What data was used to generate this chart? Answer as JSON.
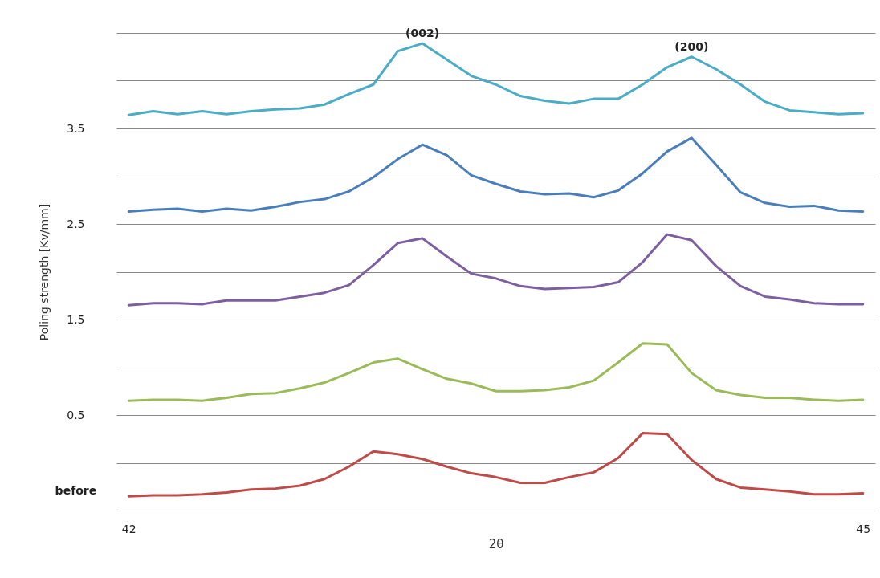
{
  "chart_data": {
    "type": "line",
    "xlabel": "2θ",
    "ylabel": "Poling strength [Kv/mm]",
    "x": [
      42.0,
      42.1,
      42.2,
      42.3,
      42.4,
      42.5,
      42.6,
      42.7,
      42.8,
      42.9,
      43.0,
      43.1,
      43.2,
      43.3,
      43.4,
      43.5,
      43.6,
      43.7,
      43.8,
      43.9,
      44.0,
      44.1,
      44.2,
      44.3,
      44.4,
      44.5,
      44.6,
      44.7,
      44.8,
      44.9,
      45.0
    ],
    "xlim": [
      41.95,
      45.05
    ],
    "xticks": [
      42,
      45
    ],
    "ylim": [
      -0.5,
      4.5
    ],
    "yticks": [
      {
        "value": -0.5,
        "label": null
      },
      {
        "value": 0,
        "label": null
      },
      0.5,
      {
        "value": 1,
        "label": null
      },
      1.5,
      {
        "value": 2,
        "label": null
      },
      2.5,
      {
        "value": 3,
        "label": null
      },
      3.5,
      {
        "value": 4,
        "label": null
      },
      {
        "value": 4.5,
        "label": null
      }
    ],
    "grid": "y",
    "legend": false,
    "annotations": [
      {
        "text": "(002)",
        "x": 43.2,
        "y": 4.39
      },
      {
        "text": "(200)",
        "x": 44.3,
        "y": 4.25
      }
    ],
    "series": [
      {
        "color": "#4bacc6",
        "values": [
          3.64,
          3.68,
          3.65,
          3.68,
          3.65,
          3.68,
          3.7,
          3.71,
          3.75,
          3.86,
          3.96,
          4.31,
          4.39,
          4.22,
          4.05,
          3.96,
          3.84,
          3.79,
          3.76,
          3.81,
          3.81,
          3.96,
          4.14,
          4.25,
          4.12,
          3.96,
          3.78,
          3.69,
          3.67,
          3.65,
          3.66
        ]
      },
      {
        "color": "#4a7ebb",
        "values": [
          2.63,
          2.65,
          2.66,
          2.63,
          2.66,
          2.64,
          2.68,
          2.73,
          2.76,
          2.84,
          2.99,
          3.18,
          3.33,
          3.22,
          3.01,
          2.92,
          2.84,
          2.81,
          2.82,
          2.78,
          2.85,
          3.03,
          3.26,
          3.4,
          3.12,
          2.83,
          2.72,
          2.68,
          2.69,
          2.64,
          2.63
        ]
      },
      {
        "color": "#7d5fa0",
        "values": [
          1.65,
          1.67,
          1.67,
          1.66,
          1.7,
          1.7,
          1.7,
          1.74,
          1.78,
          1.86,
          2.07,
          2.3,
          2.35,
          2.16,
          1.98,
          1.93,
          1.85,
          1.82,
          1.83,
          1.84,
          1.89,
          2.1,
          2.39,
          2.33,
          2.06,
          1.85,
          1.74,
          1.71,
          1.67,
          1.66,
          1.66
        ]
      },
      {
        "color": "#9bbb59",
        "values": [
          0.65,
          0.66,
          0.66,
          0.65,
          0.68,
          0.72,
          0.73,
          0.78,
          0.84,
          0.94,
          1.05,
          1.09,
          0.98,
          0.88,
          0.83,
          0.75,
          0.75,
          0.76,
          0.79,
          0.86,
          1.05,
          1.25,
          1.24,
          0.94,
          0.76,
          0.71,
          0.68,
          0.68,
          0.66,
          0.65,
          0.66
        ]
      },
      {
        "name": "before",
        "color": "#be4b48",
        "values": [
          -0.35,
          -0.34,
          -0.34,
          -0.33,
          -0.31,
          -0.28,
          -0.27,
          -0.24,
          -0.17,
          -0.04,
          0.12,
          0.09,
          0.04,
          -0.04,
          -0.11,
          -0.15,
          -0.21,
          -0.21,
          -0.15,
          -0.1,
          0.05,
          0.31,
          0.3,
          0.03,
          -0.17,
          -0.26,
          -0.28,
          -0.3,
          -0.33,
          -0.33,
          -0.32
        ]
      }
    ]
  }
}
